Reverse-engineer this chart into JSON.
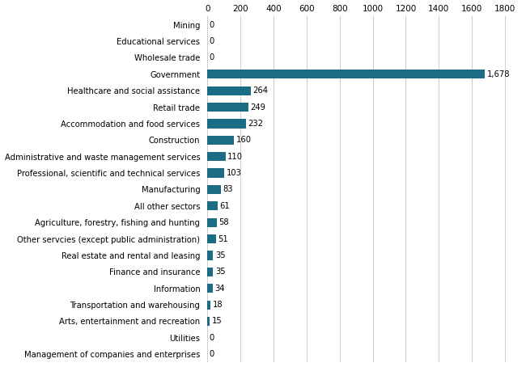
{
  "categories": [
    "Mining",
    "Educational services",
    "Wholesale trade",
    "Government",
    "Healthcare and social assistance",
    "Retail trade",
    "Accommodation and food services",
    "Construction",
    "Administrative and waste management services",
    "Professional, scientific and technical services",
    "Manufacturing",
    "All other sectors",
    "Agriculture, forestry, fishing and hunting",
    "Other servcies (except public administration)",
    "Real estate and rental and leasing",
    "Finance and insurance",
    "Information",
    "Transportation and warehousing",
    "Arts, entertainment and recreation",
    "Utilities",
    "Management of companies and enterprises"
  ],
  "values": [
    0,
    0,
    0,
    1678,
    264,
    249,
    232,
    160,
    110,
    103,
    83,
    61,
    58,
    51,
    35,
    35,
    34,
    18,
    15,
    0,
    0
  ],
  "bar_color": "#1c6c85",
  "xlim": [
    0,
    1900
  ],
  "xticks": [
    0,
    200,
    400,
    600,
    800,
    1000,
    1200,
    1400,
    1600,
    1800
  ],
  "value_labels": [
    "0",
    "0",
    "0",
    "1,678",
    "264",
    "249",
    "232",
    "160",
    "110",
    "103",
    "83",
    "61",
    "58",
    "51",
    "35",
    "35",
    "34",
    "18",
    "15",
    "0",
    "0"
  ],
  "figsize": [
    6.5,
    4.54
  ],
  "dpi": 100,
  "bar_height": 0.55,
  "label_fontsize": 7.2,
  "tick_fontsize": 7.5
}
